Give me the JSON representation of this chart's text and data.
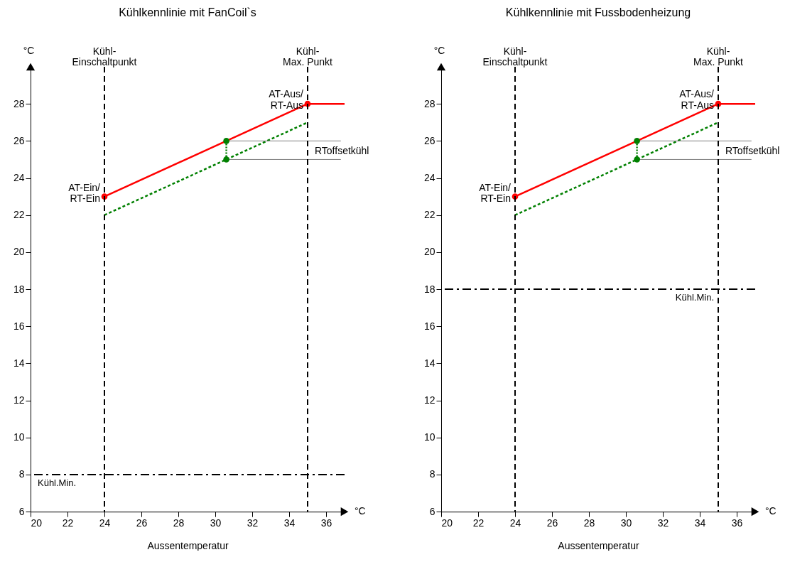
{
  "chart_data": [
    {
      "type": "line",
      "title": "Kühlkennlinie mit FanCoil`s",
      "xlabel": "Aussentemperatur",
      "ylabel": "°C",
      "xlim": [
        20,
        37
      ],
      "ylim": [
        6,
        30
      ],
      "xticks": [
        20,
        22,
        24,
        26,
        28,
        30,
        32,
        34,
        36
      ],
      "yticks": [
        6,
        8,
        10,
        12,
        14,
        16,
        18,
        20,
        22,
        24,
        26,
        28
      ],
      "grid": false,
      "series": [
        {
          "color": "#ff0000",
          "x": [
            24,
            30.6,
            35,
            37
          ],
          "values": [
            23,
            26,
            28,
            28
          ]
        },
        {
          "color": "#008000",
          "line_style": "dashed",
          "x": [
            24,
            30.6,
            35
          ],
          "values": [
            22,
            25,
            27
          ]
        },
        {
          "color": "#008000",
          "line_style": "dotted",
          "x": [
            30.6,
            30.6
          ],
          "values": [
            25,
            26
          ]
        },
        {
          "color": "#808080",
          "x": [
            30.6,
            36.8
          ],
          "values": [
            26,
            26
          ]
        },
        {
          "color": "#808080",
          "x": [
            30.6,
            36.8
          ],
          "values": [
            25,
            25
          ]
        },
        {
          "type": "scatter",
          "color": "#ff0000",
          "marker": "circle",
          "x": [
            24,
            35
          ],
          "values": [
            23,
            28
          ]
        },
        {
          "type": "scatter",
          "color": "#008000",
          "marker": "circle",
          "x": [
            30.6,
            30.6
          ],
          "values": [
            26,
            25
          ]
        }
      ],
      "ref_lines": [
        {
          "axis": "x",
          "value": 24,
          "label": "Kühl-\nEinschaltpunkt",
          "line_style": "dashed",
          "color": "#000000"
        },
        {
          "axis": "x",
          "value": 35,
          "label": "Kühl-\nMax. Punkt",
          "line_style": "dashed",
          "color": "#000000"
        },
        {
          "axis": "y",
          "value": 8,
          "label": "Kühl.Min.",
          "line_style": "dashdot",
          "color": "#000000"
        }
      ],
      "annotations": [
        "AT-Ein/\nRT-Ein",
        "AT-Aus/\nRT-Aus",
        "RToffsetkühl",
        "°C"
      ]
    },
    {
      "type": "line",
      "title": "Kühlkennlinie mit Fussbodenheizung",
      "xlabel": "Aussentemperatur",
      "ylabel": "°C",
      "xlim": [
        20,
        37
      ],
      "ylim": [
        6,
        30
      ],
      "xticks": [
        20,
        22,
        24,
        26,
        28,
        30,
        32,
        34,
        36
      ],
      "yticks": [
        6,
        8,
        10,
        12,
        14,
        16,
        18,
        20,
        22,
        24,
        26,
        28
      ],
      "grid": false,
      "series": [
        {
          "color": "#ff0000",
          "x": [
            24,
            30.6,
            35,
            37
          ],
          "values": [
            23,
            26,
            28,
            28
          ]
        },
        {
          "color": "#008000",
          "line_style": "dashed",
          "x": [
            24,
            30.6,
            35
          ],
          "values": [
            22,
            25,
            27
          ]
        },
        {
          "color": "#008000",
          "line_style": "dotted",
          "x": [
            30.6,
            30.6
          ],
          "values": [
            25,
            26
          ]
        },
        {
          "color": "#808080",
          "x": [
            30.6,
            36.8
          ],
          "values": [
            26,
            26
          ]
        },
        {
          "color": "#808080",
          "x": [
            30.6,
            36.8
          ],
          "values": [
            25,
            25
          ]
        },
        {
          "type": "scatter",
          "color": "#ff0000",
          "marker": "circle",
          "x": [
            24,
            35
          ],
          "values": [
            23,
            28
          ]
        },
        {
          "type": "scatter",
          "color": "#008000",
          "marker": "circle",
          "x": [
            30.6,
            30.6
          ],
          "values": [
            26,
            25
          ]
        }
      ],
      "ref_lines": [
        {
          "axis": "x",
          "value": 24,
          "label": "Kühl-\nEinschaltpunkt",
          "line_style": "dashed",
          "color": "#000000"
        },
        {
          "axis": "x",
          "value": 35,
          "label": "Kühl-\nMax. Punkt",
          "line_style": "dashed",
          "color": "#000000"
        },
        {
          "axis": "y",
          "value": 18,
          "label": "Kühl.Min.",
          "line_style": "dashdot",
          "color": "#000000"
        }
      ],
      "annotations": [
        "AT-Ein/\nRT-Ein",
        "AT-Aus/\nRT-Aus",
        "RToffsetkühl",
        "°C"
      ]
    }
  ]
}
